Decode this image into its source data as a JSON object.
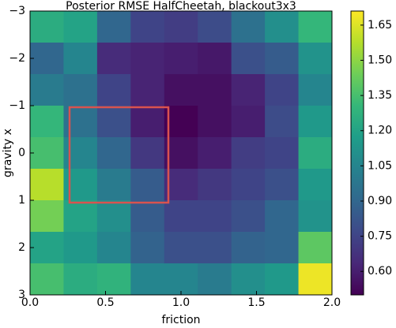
{
  "chart_data": {
    "type": "heatmap",
    "title": "Posterior RMSE HalfCheetah, blackout3x3",
    "x_label": "friction",
    "y_label": "gravity x",
    "xlim": [
      0,
      2
    ],
    "ylim": [
      3,
      -3
    ],
    "xticks": [
      {
        "value": 0,
        "label": "0.0"
      },
      {
        "value": 0.5,
        "label": "0.5"
      },
      {
        "value": 1,
        "label": "1.0"
      },
      {
        "value": 1.5,
        "label": "1.5"
      },
      {
        "value": 2,
        "label": "2.0"
      }
    ],
    "yticks": [
      {
        "value": -3,
        "label": "−3"
      },
      {
        "value": -2,
        "label": "−2"
      },
      {
        "value": -1,
        "label": "−1"
      },
      0,
      1,
      2,
      3
    ],
    "colormap": "viridis",
    "clim": [
      0.5,
      1.71
    ],
    "cticks": [
      {
        "value": 0.6,
        "label": "0.60"
      },
      {
        "value": 0.75,
        "label": "0.75"
      },
      {
        "value": 0.9,
        "label": "0.90"
      },
      {
        "value": 1.05,
        "label": "1.05"
      },
      {
        "value": 1.2,
        "label": "1.20"
      },
      {
        "value": 1.35,
        "label": "1.35"
      },
      {
        "value": 1.5,
        "label": "1.50"
      },
      {
        "value": 1.65,
        "label": "1.65"
      }
    ],
    "highlight_color": "#d9534f",
    "values": [
      [
        1.25,
        1.2,
        0.9,
        0.75,
        0.72,
        0.78,
        0.95,
        1.1,
        1.3
      ],
      [
        0.9,
        1.05,
        0.65,
        0.62,
        0.6,
        0.58,
        0.8,
        0.85,
        1.12
      ],
      [
        1.0,
        0.95,
        0.75,
        0.62,
        0.55,
        0.55,
        0.62,
        0.75,
        1.05
      ],
      [
        1.3,
        0.95,
        0.8,
        0.6,
        0.5,
        0.55,
        0.6,
        0.78,
        1.15
      ],
      [
        1.35,
        1.05,
        0.9,
        0.7,
        0.55,
        0.6,
        0.72,
        0.75,
        1.25
      ],
      [
        1.58,
        1.15,
        1.0,
        0.85,
        0.65,
        0.7,
        0.75,
        0.8,
        1.15
      ],
      [
        1.45,
        1.2,
        1.1,
        0.85,
        0.75,
        0.75,
        0.8,
        0.9,
        1.12
      ],
      [
        1.2,
        1.15,
        1.05,
        0.88,
        0.8,
        0.8,
        0.88,
        0.9,
        1.4
      ],
      [
        1.35,
        1.25,
        1.28,
        1.05,
        1.05,
        1.0,
        1.1,
        1.15,
        1.68
      ]
    ]
  }
}
